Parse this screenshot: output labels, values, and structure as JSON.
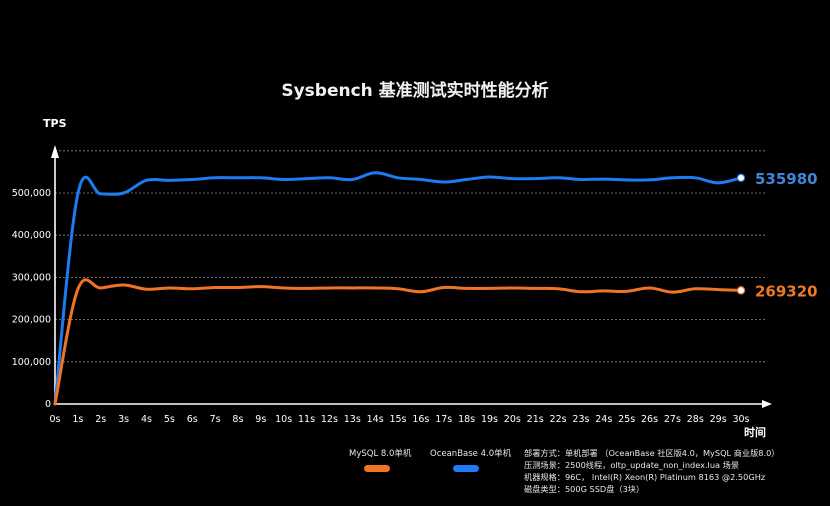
{
  "title": "Sysbench 基准测试实时性能分析",
  "chart_data": {
    "type": "line",
    "title": "Sysbench 基准测试实时性能分析",
    "ylabel": "TPS",
    "xlabel": "时间",
    "ylim": [
      0,
      600000
    ],
    "yticks": [
      0,
      100000,
      200000,
      300000,
      400000,
      500000
    ],
    "ytick_labels": [
      "0",
      "100,000",
      "200,000",
      "300,000",
      "400,000",
      "500,000"
    ],
    "categories": [
      "0s",
      "1s",
      "2s",
      "3s",
      "4s",
      "5s",
      "6s",
      "7s",
      "8s",
      "9s",
      "10s",
      "11s",
      "12s",
      "13s",
      "14s",
      "15s",
      "16s",
      "17s",
      "18s",
      "19s",
      "20s",
      "21s",
      "22s",
      "23s",
      "24s",
      "25s",
      "26s",
      "27s",
      "28s",
      "29s",
      "30s"
    ],
    "grid": true,
    "series": [
      {
        "name": "OceanBase 4.0单机",
        "color": "#1e7bf0",
        "label_color": "#3f86dc",
        "end_label": "535980",
        "values": [
          0,
          498000,
          498000,
          500000,
          530000,
          530000,
          532000,
          536000,
          536000,
          536000,
          532000,
          534000,
          536000,
          532000,
          548000,
          536000,
          532000,
          526000,
          532000,
          538000,
          534000,
          534000,
          536000,
          532000,
          533000,
          531000,
          531000,
          536000,
          536000,
          524000,
          535980
        ]
      },
      {
        "name": "MySQL 8.0单机",
        "color": "#ef7424",
        "label_color": "#ee7a26",
        "end_label": "269320",
        "values": [
          0,
          272000,
          275000,
          282000,
          272000,
          275000,
          273000,
          276000,
          276000,
          278000,
          275000,
          274000,
          275000,
          275000,
          275000,
          273000,
          266000,
          276000,
          274000,
          274000,
          275000,
          274000,
          273000,
          266000,
          268000,
          267000,
          275000,
          265000,
          273000,
          271000,
          269320
        ]
      }
    ]
  },
  "legend": {
    "mysql": "MySQL 8.0单机",
    "oceanbase": "OceanBase 4.0单机"
  },
  "notes": [
    "部署方式：单机部署 （OceanBase 社区版4.0，MySQL 商业版8.0）",
    "压测场景：2500线程，oltp_update_non_index.lua 场景",
    "机器规格：96C， Intel(R) Xeon(R) Platinum 8163 @2.50GHz",
    "磁盘类型：500G SSD盘（3块）"
  ]
}
